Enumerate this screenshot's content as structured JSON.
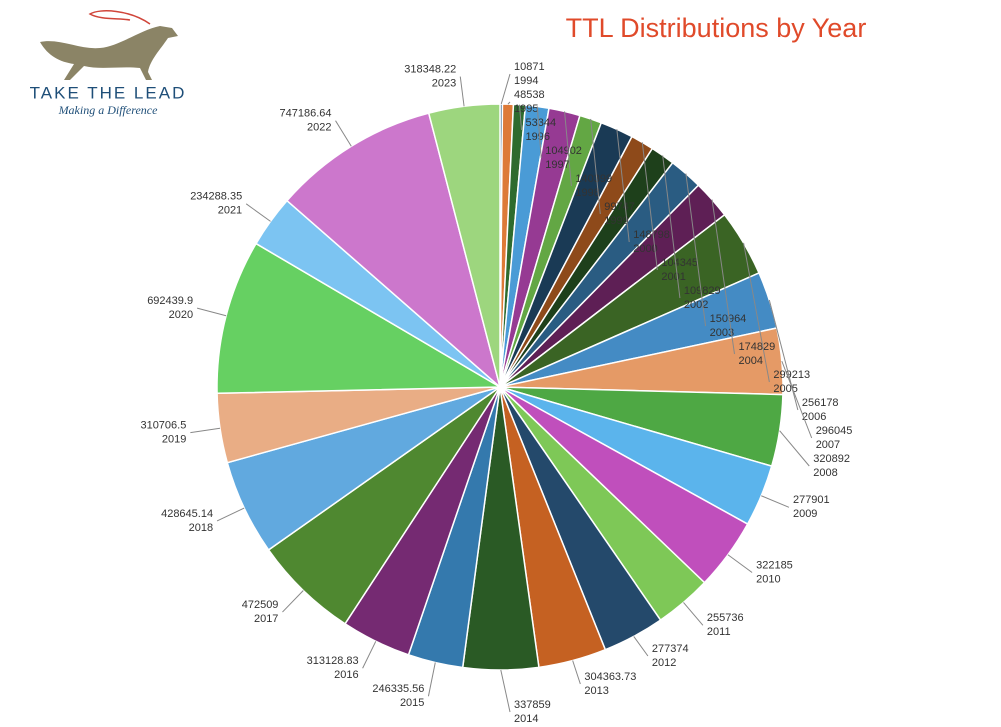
{
  "logo": {
    "name": "TAKE THE LEAD",
    "tagline": "Making a Difference"
  },
  "chart_data": {
    "type": "pie",
    "title": "TTL Distributions by Year",
    "categories": [
      "1994",
      "1995",
      "1996",
      "1997",
      "1998",
      "1999",
      "2000",
      "2001",
      "2002",
      "2003",
      "2004",
      "2005",
      "2006",
      "2007",
      "2008",
      "2009",
      "2010",
      "2011",
      "2012",
      "2013",
      "2014",
      "2015",
      "2016",
      "2017",
      "2018",
      "2019",
      "2020",
      "2021",
      "2022",
      "2023"
    ],
    "values": [
      10871,
      48538,
      53344,
      104902,
      140399,
      99747,
      148798,
      104345,
      109829,
      150964,
      174829,
      299213,
      256178,
      296045,
      320892,
      277901,
      322185,
      255736,
      277374,
      304363.73,
      337859,
      246335.56,
      313128.83,
      472509,
      428645.14,
      310706.5,
      692439.9,
      234288.35,
      747186.64,
      318348.22
    ],
    "colors": [
      "#2a5a80",
      "#dd7a38",
      "#2e6b2e",
      "#4a9bd6",
      "#963a93",
      "#63a744",
      "#1a3a55",
      "#8e4a1a",
      "#1e401b",
      "#2a5c82",
      "#5e1f55",
      "#3a6424",
      "#448bc4",
      "#e59a66",
      "#4ea844",
      "#5bb4ec",
      "#c04fbc",
      "#7ec857",
      "#24496b",
      "#c56122",
      "#2a5a25",
      "#3479ad",
      "#752a72",
      "#4f8830",
      "#61a9df",
      "#e9ad85",
      "#66d062",
      "#7cc4f2",
      "#cc77cc",
      "#9dd67e"
    ]
  }
}
